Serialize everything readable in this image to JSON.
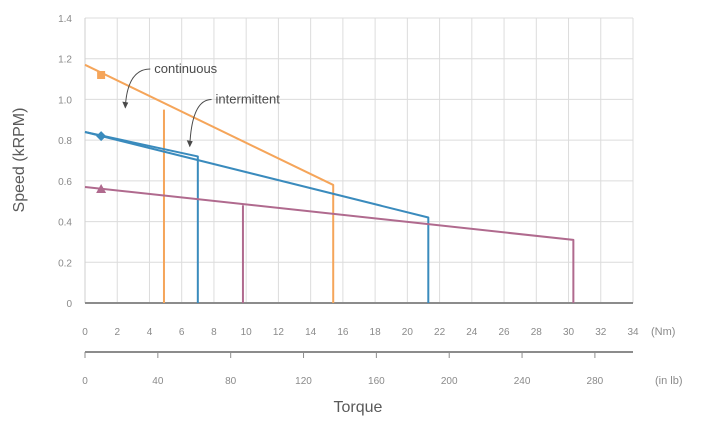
{
  "chart_data": {
    "type": "line",
    "title": "",
    "xlabel": "Torque",
    "ylabel": "Speed (kRPM)",
    "x_unit_nm": "(Nm)",
    "x_unit_inlb": "(in lb)",
    "xlim": [
      0,
      34
    ],
    "ylim": [
      0,
      1.4
    ],
    "x_ticks": [
      0,
      2,
      4,
      6,
      8,
      10,
      12,
      14,
      16,
      18,
      20,
      22,
      24,
      26,
      28,
      30,
      32,
      34
    ],
    "x_tick_labels": [
      "0",
      "2",
      "4",
      "6",
      "8",
      "10",
      "12",
      "14",
      "16",
      "18",
      "20",
      "22",
      "24",
      "26",
      "28",
      "30",
      "32",
      "34"
    ],
    "x2_ticks": [
      0,
      40,
      80,
      120,
      160,
      200,
      240,
      280
    ],
    "x2_tick_labels": [
      "0",
      "40",
      "80",
      "120",
      "160",
      "200",
      "240",
      "280"
    ],
    "y_ticks": [
      0,
      0.2,
      0.4,
      0.6,
      0.8,
      1.0,
      1.2,
      1.4
    ],
    "y_tick_labels": [
      "0",
      "0.2",
      "0.4",
      "0.6",
      "0.8",
      "1.0",
      "1.2",
      "1.4"
    ],
    "grid": true,
    "annotations": [
      {
        "text": "continuous",
        "x": 4.3,
        "y": 1.13,
        "arrow_to": [
          2.5,
          0.96
        ]
      },
      {
        "text": "intermittent",
        "x": 8.1,
        "y": 0.98,
        "arrow_to": [
          6.5,
          0.77
        ]
      }
    ],
    "series": [
      {
        "color": "#f5a55a",
        "marker": "square",
        "marker_at": [
          1.0,
          1.12
        ],
        "continuous": [
          [
            4.9,
            0.95
          ],
          [
            4.9,
            0.0
          ]
        ],
        "intermittent": [
          [
            0,
            1.17
          ],
          [
            15.4,
            0.58
          ],
          [
            15.4,
            0.0
          ]
        ]
      },
      {
        "color": "#3a8bbd",
        "marker": "diamond",
        "marker_at": [
          1.0,
          0.82
        ],
        "continuous": [
          [
            0,
            0.84
          ],
          [
            7.0,
            0.72
          ],
          [
            7.0,
            0.0
          ]
        ],
        "intermittent": [
          [
            0,
            0.84
          ],
          [
            21.3,
            0.42
          ],
          [
            21.3,
            0.0
          ]
        ]
      },
      {
        "color": "#b06a8e",
        "marker": "triangle",
        "marker_at": [
          1.0,
          0.56
        ],
        "continuous": [
          [
            9.8,
            0.48
          ],
          [
            9.8,
            0.0
          ]
        ],
        "intermittent": [
          [
            0,
            0.57
          ],
          [
            30.3,
            0.31
          ],
          [
            30.3,
            0.0
          ]
        ]
      }
    ]
  }
}
